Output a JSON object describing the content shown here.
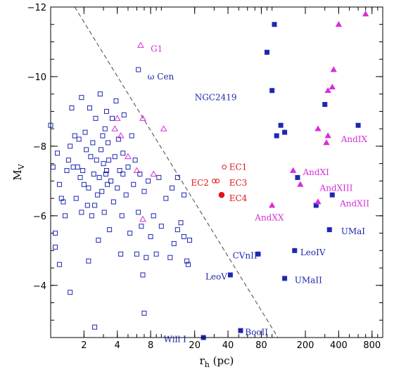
{
  "chart_data": {
    "type": "scatter",
    "xlabel": "r",
    "xlabel_sub": "h",
    "xlabel_unit": " (pc)",
    "ylabel": "M",
    "ylabel_sub": "V",
    "x_scale": "log",
    "xlim": [
      1,
      1000
    ],
    "ylim": [
      -2.5,
      -12
    ],
    "x_ticks": [
      2,
      4,
      8,
      20,
      40,
      80,
      200,
      400,
      800
    ],
    "x_tick_labels": [
      "2",
      "4",
      "8",
      "20",
      "40",
      "80",
      "200",
      "400",
      "800"
    ],
    "y_ticks": [
      -12,
      -10,
      -8,
      -6,
      -4
    ],
    "y_tick_labels": [
      "−12",
      "−10",
      "−8",
      "−6",
      "−4"
    ],
    "grid": false,
    "dashed_line": {
      "x": [
        1.65,
        113
      ],
      "y": [
        -12,
        -2.5
      ]
    },
    "colors": {
      "blue": "#1c28b0",
      "magenta": "#d62fd8",
      "red": "#e0141a",
      "line": "#555555"
    },
    "series": [
      {
        "marker": "open-square",
        "color": "#1c28b0",
        "points": [
          [
            1.0,
            -8.6
          ],
          [
            1.05,
            -7.4
          ],
          [
            1.1,
            -5.5
          ],
          [
            1.15,
            -7.8
          ],
          [
            1.2,
            -6.9
          ],
          [
            1.25,
            -6.5
          ],
          [
            1.3,
            -6.4
          ],
          [
            1.35,
            -6.0
          ],
          [
            1.4,
            -7.3
          ],
          [
            1.45,
            -7.6
          ],
          [
            1.5,
            -8.0
          ],
          [
            1.55,
            -9.1
          ],
          [
            1.6,
            -7.4
          ],
          [
            1.65,
            -8.3
          ],
          [
            1.7,
            -6.5
          ],
          [
            1.75,
            -7.4
          ],
          [
            1.8,
            -8.2
          ],
          [
            1.85,
            -7.1
          ],
          [
            1.9,
            -9.4
          ],
          [
            1.95,
            -7.3
          ],
          [
            2.0,
            -6.9
          ],
          [
            2.05,
            -8.4
          ],
          [
            2.1,
            -7.9
          ],
          [
            2.15,
            -6.3
          ],
          [
            2.2,
            -6.8
          ],
          [
            2.25,
            -9.1
          ],
          [
            2.3,
            -7.7
          ],
          [
            2.35,
            -6.0
          ],
          [
            2.4,
            -8.1
          ],
          [
            2.45,
            -7.2
          ],
          [
            2.5,
            -6.3
          ],
          [
            2.55,
            -8.8
          ],
          [
            2.6,
            -7.6
          ],
          [
            2.65,
            -6.6
          ],
          [
            2.7,
            -5.3
          ],
          [
            2.75,
            -7.1
          ],
          [
            2.8,
            -9.5
          ],
          [
            2.85,
            -7.9
          ],
          [
            2.9,
            -6.7
          ],
          [
            2.95,
            -8.3
          ],
          [
            3.0,
            -7.5
          ],
          [
            3.05,
            -6.1
          ],
          [
            3.1,
            -8.5
          ],
          [
            3.15,
            -7.2
          ],
          [
            3.2,
            -9.0
          ],
          [
            3.25,
            -6.9
          ],
          [
            3.3,
            -8.1
          ],
          [
            3.35,
            -7.6
          ],
          [
            3.4,
            -5.6
          ],
          [
            3.5,
            -7.0
          ],
          [
            3.6,
            -8.8
          ],
          [
            3.7,
            -6.4
          ],
          [
            3.8,
            -7.7
          ],
          [
            3.9,
            -9.3
          ],
          [
            4.0,
            -6.8
          ],
          [
            4.1,
            -8.2
          ],
          [
            4.2,
            -7.3
          ],
          [
            4.3,
            -4.9
          ],
          [
            4.4,
            -6.0
          ],
          [
            4.5,
            -7.8
          ],
          [
            4.6,
            -8.9
          ],
          [
            4.8,
            -6.6
          ],
          [
            5.0,
            -7.4
          ],
          [
            5.2,
            -5.5
          ],
          [
            5.4,
            -8.3
          ],
          [
            5.6,
            -6.9
          ],
          [
            5.8,
            -7.6
          ],
          [
            6.0,
            -4.9
          ],
          [
            6.2,
            -6.1
          ],
          [
            6.4,
            -7.2
          ],
          [
            6.6,
            -5.7
          ],
          [
            6.8,
            -4.3
          ],
          [
            7.0,
            -6.7
          ],
          [
            7.3,
            -4.8
          ],
          [
            7.6,
            -7.0
          ],
          [
            8.0,
            -5.4
          ],
          [
            8.5,
            -6.0
          ],
          [
            9.0,
            -4.9
          ],
          [
            9.5,
            -7.1
          ],
          [
            10.0,
            -5.7
          ],
          [
            11.0,
            -6.5
          ],
          [
            12.0,
            -4.8
          ],
          [
            14.0,
            -5.6
          ],
          [
            15.0,
            -5.8
          ],
          [
            16.0,
            -5.4
          ],
          [
            17.0,
            -4.7
          ],
          [
            18.0,
            -5.3
          ],
          [
            14.0,
            -7.1
          ],
          [
            13.0,
            -5.2
          ],
          [
            12.5,
            -6.8
          ],
          [
            1.2,
            -4.6
          ],
          [
            1.5,
            -3.8
          ],
          [
            2.5,
            -2.8
          ],
          [
            7.0,
            -3.2
          ],
          [
            2.2,
            -4.7
          ],
          [
            16.0,
            -6.6
          ],
          [
            6.2,
            -10.2
          ],
          [
            17.5,
            -4.6
          ],
          [
            1.1,
            -5.1
          ],
          [
            1.9,
            -6.1
          ],
          [
            3.2,
            -7.3
          ],
          [
            4.5,
            -7.2
          ]
        ]
      },
      {
        "marker": "open-triangle",
        "color": "#d62fd8",
        "points": [
          [
            6.5,
            -10.9
          ],
          [
            4.0,
            -8.8
          ],
          [
            6.8,
            -8.8
          ],
          [
            4.3,
            -8.3
          ],
          [
            3.8,
            -8.5
          ],
          [
            5.0,
            -7.7
          ],
          [
            8.5,
            -7.2
          ],
          [
            6.8,
            -5.9
          ],
          [
            10.5,
            -8.5
          ],
          [
            6.0,
            -7.3
          ]
        ]
      },
      {
        "marker": "filled-square",
        "color": "#1c28b0",
        "points": [
          [
            105,
            -11.5
          ],
          [
            90,
            -10.7
          ],
          [
            100,
            -9.6
          ],
          [
            300,
            -9.2
          ],
          [
            120,
            -8.6
          ],
          [
            110,
            -8.3
          ],
          [
            130,
            -8.4
          ],
          [
            600,
            -8.6
          ],
          [
            170,
            -7.1
          ],
          [
            250,
            -6.3
          ],
          [
            350,
            -6.6
          ],
          [
            330,
            -5.6
          ],
          [
            160,
            -5.0
          ],
          [
            130,
            -4.2
          ],
          [
            75,
            -4.9
          ],
          [
            42,
            -4.3
          ],
          [
            52,
            -2.7
          ],
          [
            24,
            -2.5
          ]
        ]
      },
      {
        "marker": "filled-triangle",
        "color": "#d62fd8",
        "points": [
          [
            700,
            -11.8
          ],
          [
            400,
            -11.5
          ],
          [
            360,
            -10.2
          ],
          [
            320,
            -9.6
          ],
          [
            350,
            -9.7
          ],
          [
            260,
            -8.5
          ],
          [
            320,
            -8.3
          ],
          [
            310,
            -8.1
          ],
          [
            155,
            -7.3
          ],
          [
            180,
            -6.9
          ],
          [
            260,
            -6.4
          ],
          [
            100,
            -6.3
          ]
        ]
      },
      {
        "marker": "open-circle",
        "color": "#e0141a",
        "points": [
          [
            37,
            -7.4
          ],
          [
            30,
            -7.0
          ],
          [
            32,
            -7.0
          ]
        ]
      },
      {
        "marker": "filled-circle",
        "color": "#e0141a",
        "points": [
          [
            35,
            -6.6
          ]
        ]
      }
    ],
    "annotations": [
      {
        "text": "G1",
        "x": 8.0,
        "y": -10.8,
        "color": "#d62fd8"
      },
      {
        "text": "ω Cen",
        "x": 7.5,
        "y": -10.0,
        "color": "#1c28b0"
      },
      {
        "text": "NGC2419",
        "x": 20,
        "y": -9.4,
        "color": "#1c28b0"
      },
      {
        "text": "EC1",
        "x": 41,
        "y": -7.4,
        "color": "#e0141a"
      },
      {
        "text": "EC2",
        "x": 18.5,
        "y": -6.95,
        "color": "#e0141a"
      },
      {
        "text": "EC3",
        "x": 41,
        "y": -6.95,
        "color": "#e0141a"
      },
      {
        "text": "EC4",
        "x": 41,
        "y": -6.5,
        "color": "#e0141a"
      },
      {
        "text": "AndIX",
        "x": 420,
        "y": -8.2,
        "color": "#d62fd8"
      },
      {
        "text": "AndXI",
        "x": 190,
        "y": -7.25,
        "color": "#d62fd8"
      },
      {
        "text": "AndXIII",
        "x": 270,
        "y": -6.8,
        "color": "#d62fd8"
      },
      {
        "text": "AndXII",
        "x": 410,
        "y": -6.35,
        "color": "#d62fd8"
      },
      {
        "text": "AndXX",
        "x": 70,
        "y": -5.95,
        "color": "#d62fd8"
      },
      {
        "text": "UMaI",
        "x": 420,
        "y": -5.55,
        "color": "#1c28b0"
      },
      {
        "text": "CVnII",
        "x": 44,
        "y": -4.85,
        "color": "#1c28b0"
      },
      {
        "text": "LeoIV",
        "x": 180,
        "y": -4.95,
        "color": "#1c28b0"
      },
      {
        "text": "LeoV",
        "x": 25,
        "y": -4.25,
        "color": "#1c28b0"
      },
      {
        "text": "UMaII",
        "x": 160,
        "y": -4.15,
        "color": "#1c28b0"
      },
      {
        "text": "BooII",
        "x": 57,
        "y": -2.65,
        "color": "#1c28b0"
      },
      {
        "text": "Will I",
        "x": 10.5,
        "y": -2.45,
        "color": "#1c28b0"
      }
    ]
  }
}
